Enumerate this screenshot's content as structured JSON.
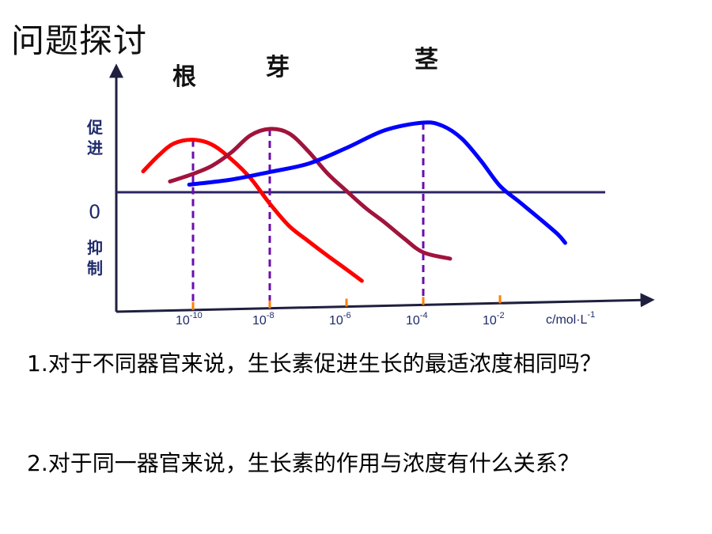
{
  "title": "问题探讨",
  "chart_data": {
    "type": "line",
    "ylabel_top": "促进",
    "ylabel_bottom": "抑制",
    "zero_label": "0",
    "xlabel": "c/mol·L-1",
    "x_ticks": [
      {
        "base": "10",
        "exp": "-10",
        "value": -10
      },
      {
        "base": "10",
        "exp": "-8",
        "value": -8
      },
      {
        "base": "10",
        "exp": "-6",
        "value": -6
      },
      {
        "base": "10",
        "exp": "-4",
        "value": -4
      },
      {
        "base": "10",
        "exp": "-2",
        "value": -2
      }
    ],
    "x_scale": "log",
    "series": [
      {
        "name": "根",
        "color": "#ff0000",
        "peak_log_x": -10,
        "points": [
          [
            -11.3,
            0.33
          ],
          [
            -10.9,
            0.58
          ],
          [
            -10.5,
            0.77
          ],
          [
            -10,
            0.83
          ],
          [
            -9.5,
            0.75
          ],
          [
            -9.0,
            0.52
          ],
          [
            -8.5,
            0.22
          ],
          [
            -8.0,
            -0.18
          ],
          [
            -7.5,
            -0.53
          ],
          [
            -7.0,
            -0.77
          ],
          [
            -6.5,
            -1.0
          ],
          [
            -6.0,
            -1.22
          ],
          [
            -5.6,
            -1.4
          ]
        ]
      },
      {
        "name": "芽",
        "color": "#a0143c",
        "peak_log_x": -8,
        "points": [
          [
            -10.6,
            0.17
          ],
          [
            -10.0,
            0.29
          ],
          [
            -9.5,
            0.42
          ],
          [
            -9.0,
            0.63
          ],
          [
            -8.5,
            0.9
          ],
          [
            -8.0,
            1.0
          ],
          [
            -7.5,
            0.93
          ],
          [
            -7.0,
            0.65
          ],
          [
            -6.5,
            0.3
          ],
          [
            -6.0,
            0.02
          ],
          [
            -5.5,
            -0.25
          ],
          [
            -5.0,
            -0.48
          ],
          [
            -4.5,
            -0.73
          ],
          [
            -4.0,
            -0.95
          ],
          [
            -3.3,
            -1.05
          ]
        ]
      },
      {
        "name": "茎",
        "color": "#0000ff",
        "peak_log_x": -4,
        "points": [
          [
            -10.1,
            0.12
          ],
          [
            -9.0,
            0.2
          ],
          [
            -8.0,
            0.32
          ],
          [
            -7.0,
            0.45
          ],
          [
            -6.0,
            0.7
          ],
          [
            -5.0,
            0.98
          ],
          [
            -4.0,
            1.1
          ],
          [
            -3.5,
            1.05
          ],
          [
            -3.0,
            0.85
          ],
          [
            -2.5,
            0.5
          ],
          [
            -2.0,
            0.1
          ],
          [
            -1.5,
            -0.15
          ],
          [
            -1.0,
            -0.4
          ],
          [
            -0.5,
            -0.66
          ],
          [
            -0.3,
            -0.8
          ]
        ]
      }
    ],
    "colors": {
      "axis": "#1f1f3f",
      "zero_line": "#2b2464",
      "dashed": "#6a0dad",
      "tick_mark": "#ff8000"
    }
  },
  "questions": [
    "1.对于不同器官来说，生长素促进生长的最适浓度相同吗？",
    "2.对于同一器官来说，生长素的作用与浓度有什么关系？"
  ]
}
